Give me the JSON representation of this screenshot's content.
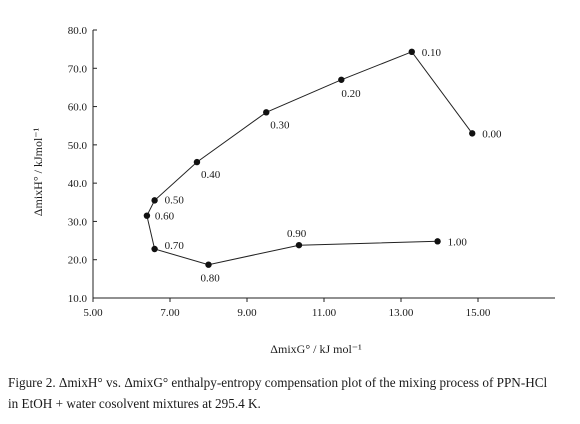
{
  "chart_data": {
    "type": "scatter",
    "xlabel": "ΔmixG° / kJ mol⁻¹",
    "ylabel": "ΔmixH° / kJmol⁻¹",
    "xlim": [
      5.0,
      17.0
    ],
    "ylim": [
      10.0,
      80.0
    ],
    "x_ticks": [
      "5.00",
      "7.00",
      "9.00",
      "11.00",
      "13.00",
      "15.00"
    ],
    "x_tick_values": [
      5,
      7,
      9,
      11,
      13,
      15
    ],
    "y_ticks": [
      "10.0",
      "20.0",
      "30.0",
      "40.0",
      "50.0",
      "60.0",
      "70.0",
      "80.0"
    ],
    "y_tick_values": [
      10,
      20,
      30,
      40,
      50,
      60,
      70,
      80
    ],
    "grid": false,
    "series": [
      {
        "points": [
          {
            "label": "0.00",
            "x": 14.85,
            "y": 53.0
          },
          {
            "label": "0.10",
            "x": 13.28,
            "y": 74.3
          },
          {
            "label": "0.20",
            "x": 11.45,
            "y": 67.0
          },
          {
            "label": "0.30",
            "x": 9.5,
            "y": 58.5
          },
          {
            "label": "0.40",
            "x": 7.7,
            "y": 45.5
          },
          {
            "label": "0.50",
            "x": 6.6,
            "y": 35.5
          },
          {
            "label": "0.60",
            "x": 6.4,
            "y": 31.5
          },
          {
            "label": "0.70",
            "x": 6.6,
            "y": 22.8
          },
          {
            "label": "0.80",
            "x": 8.0,
            "y": 18.7
          },
          {
            "label": "0.90",
            "x": 10.35,
            "y": 23.8
          },
          {
            "label": "1.00",
            "x": 13.95,
            "y": 24.8
          }
        ]
      }
    ]
  },
  "caption": {
    "line1": "Figure 2. ΔmixH° vs. ΔmixG° enthalpy-entropy compensation plot of the mixing process of PPN-HCl",
    "line2": "in EtOH + water cosolvent mixtures at 295.4 K."
  }
}
